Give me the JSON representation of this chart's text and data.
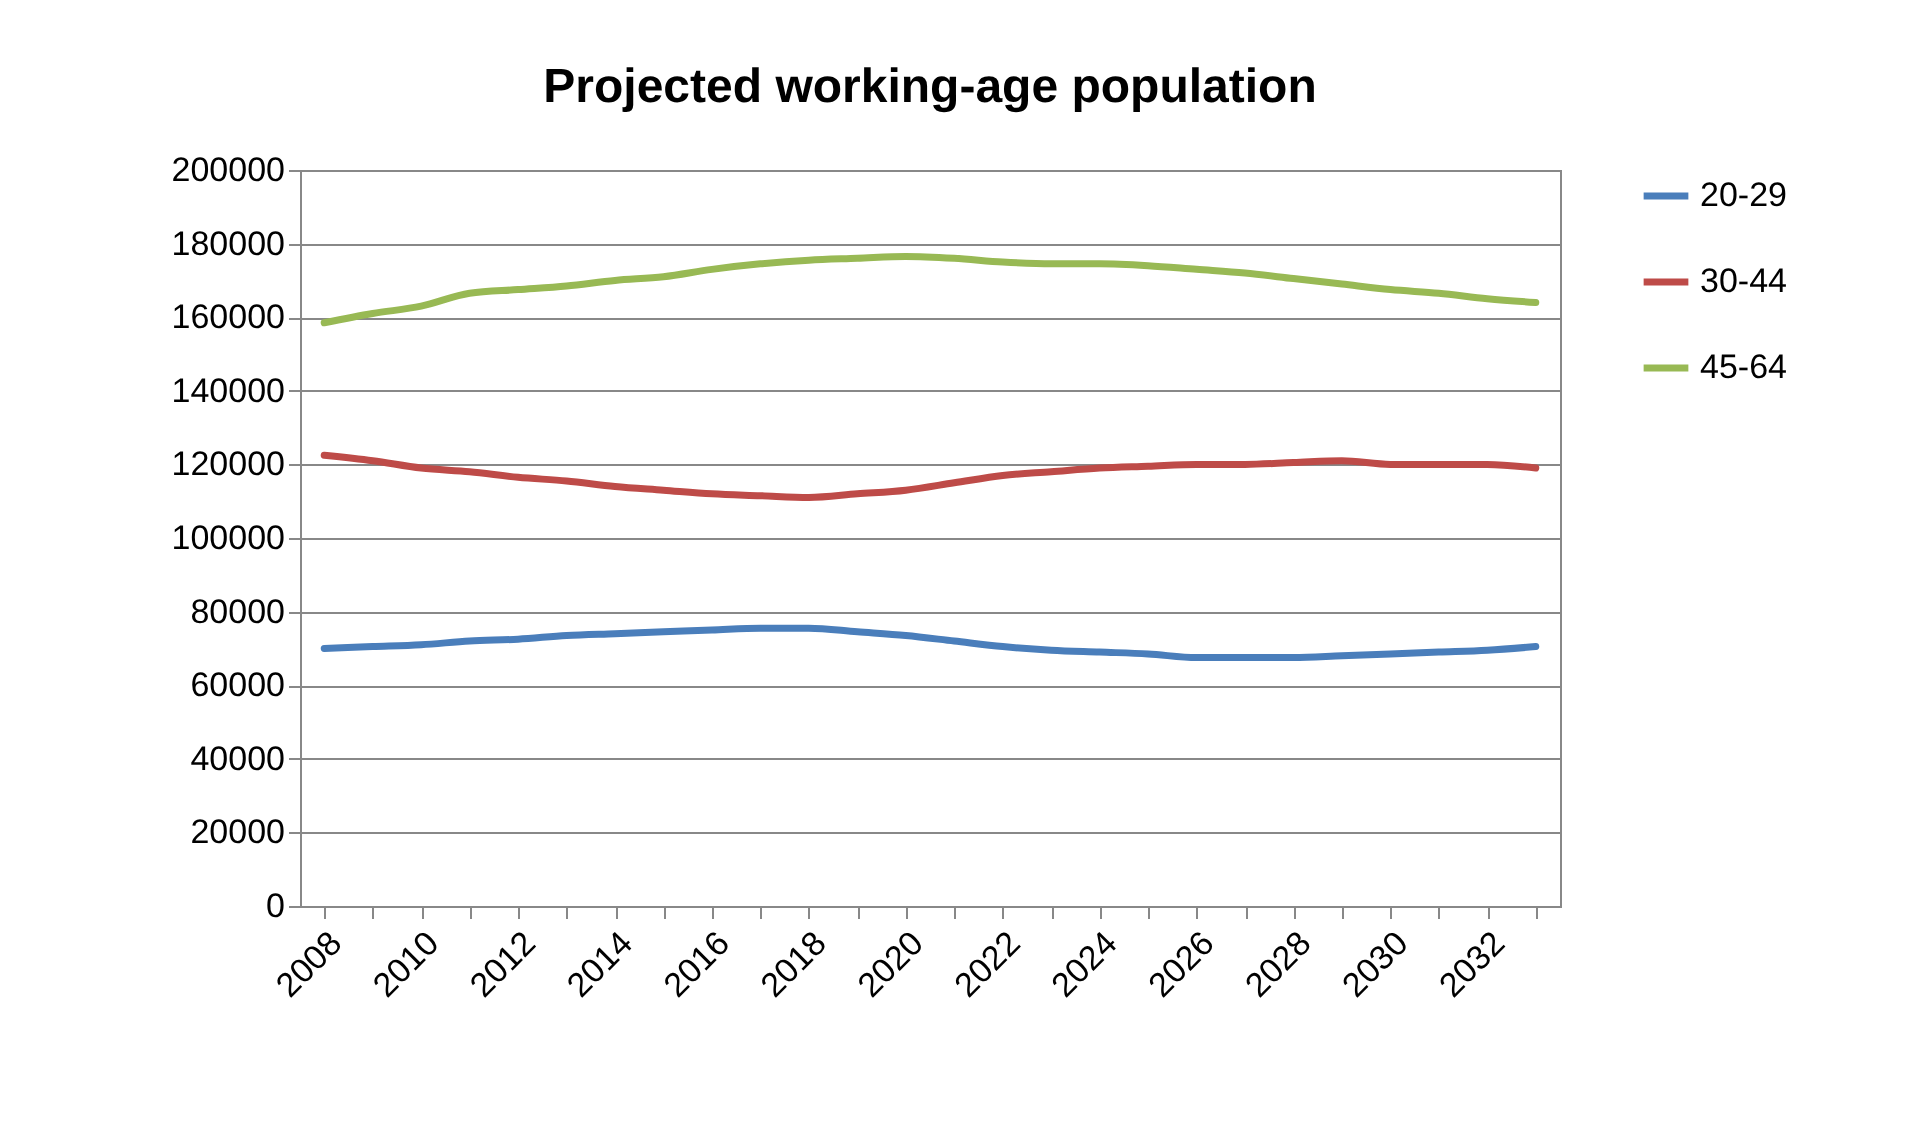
{
  "chart_data": {
    "type": "line",
    "title": "Projected working-age population",
    "categories": [
      "2008",
      null,
      "2010",
      null,
      "2012",
      null,
      "2014",
      null,
      "2016",
      null,
      "2018",
      null,
      "2020",
      null,
      "2022",
      null,
      "2024",
      null,
      "2026",
      null,
      "2028",
      null,
      "2030",
      null,
      "2032",
      null
    ],
    "series": [
      {
        "name": "20-29",
        "color": "#4a7ebb",
        "values": [
          70000,
          70500,
          71000,
          72000,
          72500,
          73500,
          74000,
          74500,
          75000,
          75500,
          75500,
          74500,
          73500,
          72000,
          70500,
          69500,
          69000,
          68500,
          67500,
          67500,
          67500,
          68000,
          68500,
          69000,
          69500,
          70500
        ]
      },
      {
        "name": "30-44",
        "color": "#be4b48",
        "values": [
          122500,
          121000,
          119000,
          118000,
          116500,
          115500,
          114000,
          113000,
          112000,
          111500,
          111000,
          112000,
          113000,
          115000,
          117000,
          118000,
          119000,
          119500,
          120000,
          120000,
          120500,
          121000,
          120000,
          120000,
          120000,
          119000
        ]
      },
      {
        "name": "45-64",
        "color": "#98b954",
        "values": [
          158500,
          161000,
          163000,
          166500,
          167500,
          168500,
          170000,
          171000,
          173000,
          174500,
          175500,
          176000,
          176500,
          176000,
          175000,
          174500,
          174500,
          174000,
          173000,
          172000,
          170500,
          169000,
          167500,
          166500,
          165000,
          164000
        ]
      }
    ],
    "ylim": [
      0,
      200000
    ],
    "yticks": [
      0,
      20000,
      40000,
      60000,
      80000,
      100000,
      120000,
      140000,
      160000,
      180000,
      200000
    ],
    "grid": "y",
    "legend": "right",
    "line_style": "solid",
    "marker": "none"
  }
}
